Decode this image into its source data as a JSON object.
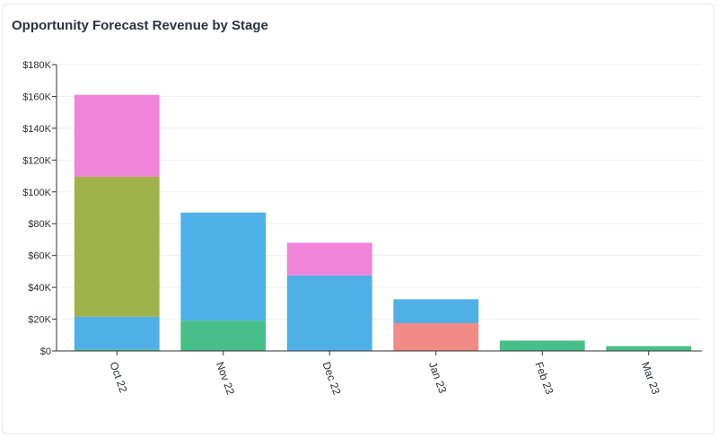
{
  "widget": {
    "title": "Opportunity Forecast Revenue by Stage"
  },
  "chart_data": {
    "type": "bar",
    "stacked": true,
    "title": "Opportunity Forecast Revenue by Stage",
    "xlabel": "",
    "ylabel": "",
    "categories": [
      "Oct 22",
      "Nov 22",
      "Dec 22",
      "Jan 23",
      "Feb 23",
      "Mar 23"
    ],
    "y_ticks": [
      "$0",
      "$20K",
      "$40K",
      "$60K",
      "$80K",
      "$100K",
      "$120K",
      "$140K",
      "$160K",
      "$180K"
    ],
    "ylim": [
      0,
      180000
    ],
    "grid": true,
    "legend": "none",
    "series": [
      {
        "color": "#48bf88",
        "values": [
          1000,
          19000,
          0,
          0,
          6500,
          3000
        ]
      },
      {
        "color": "#f28b85",
        "values": [
          0,
          0,
          0,
          17500,
          0,
          0
        ]
      },
      {
        "color": "#4fb0e8",
        "values": [
          20500,
          68000,
          47500,
          15000,
          0,
          0
        ]
      },
      {
        "color": "#a0b34a",
        "values": [
          88000,
          0,
          0,
          0,
          0,
          0
        ]
      },
      {
        "color": "#f084d8",
        "values": [
          51500,
          0,
          20500,
          0,
          0,
          0
        ]
      }
    ]
  }
}
